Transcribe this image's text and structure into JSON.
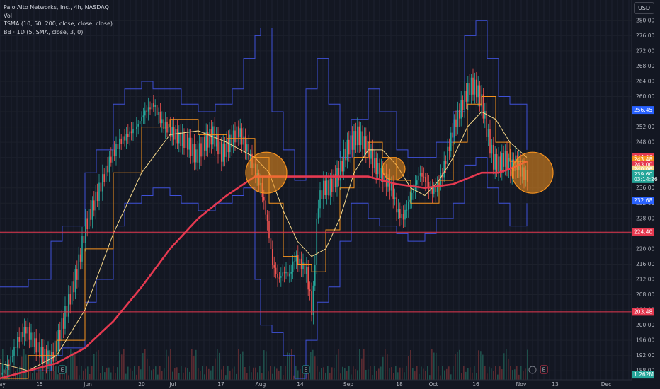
{
  "legend": {
    "title": "Palo Alto Networks, Inc., 4h, NASDAQ",
    "vol": "Vol",
    "tsma": "TSMA (10, 50, 200, close, close, close)",
    "bb": "BB · 1D (5, SMA, close, 3, 0)"
  },
  "currency": "USD",
  "colors": {
    "background": "#131722",
    "up": "#26a69a",
    "down": "#ef5350",
    "bb_band": "#3f51d8",
    "ma_short": "#f7931e",
    "ma_mid": "#f5d78a",
    "ma_long": "#e53950",
    "circle": "#f7931e",
    "hline": "#e53950"
  },
  "chart_data": {
    "type": "line",
    "ylim": [
      186,
      282
    ],
    "y_ticks": [
      188,
      192,
      196,
      200,
      204,
      208,
      212,
      216,
      220,
      224,
      228,
      232,
      236,
      240,
      244,
      248,
      252,
      256,
      260,
      264,
      268,
      272,
      276,
      280
    ],
    "y_tick_labels": [
      "188.00",
      "192.00",
      "196.00",
      "200.00",
      "204.00",
      "208.00",
      "212.00",
      "216.00",
      "220.00",
      "224.00",
      "228.00",
      "232.00",
      "236.00",
      "240.00",
      "244.00",
      "248.00",
      "252.00",
      "256.00",
      "260.00",
      "264.00",
      "268.00",
      "272.00",
      "276.00",
      "280.00"
    ],
    "x_labels": [
      "May",
      "15",
      "Jun",
      "20",
      "Jul",
      "17",
      "Aug",
      "14",
      "Sep",
      "18",
      "Oct",
      "16",
      "Nov",
      "13",
      "Dec"
    ],
    "x_label_days": [
      0,
      14,
      31,
      50,
      61,
      78,
      92,
      106,
      123,
      141,
      153,
      168,
      184,
      196,
      214
    ],
    "x_range_days": [
      0,
      223
    ],
    "series": [
      {
        "role": "price",
        "x": [
          0,
          3,
          6,
          9,
          12,
          15,
          18,
          21,
          24,
          27,
          30,
          33,
          36,
          39,
          42,
          45,
          48,
          51,
          54,
          57,
          60,
          63,
          66,
          69,
          72,
          75,
          78,
          81,
          84,
          87,
          90,
          92,
          94,
          96,
          98,
          100,
          102,
          104,
          106,
          108,
          110,
          112,
          114,
          116,
          118,
          120,
          122,
          124,
          126,
          128,
          130,
          132,
          134,
          136,
          138,
          140,
          142,
          144,
          146,
          148,
          150,
          152,
          154,
          156,
          158,
          160,
          162,
          164,
          166,
          168,
          170,
          172,
          174,
          176,
          178,
          180,
          182,
          184,
          186
        ],
        "values": [
          187,
          190,
          196,
          199,
          195,
          192,
          191,
          198,
          206,
          214,
          226,
          232,
          238,
          244,
          248,
          250,
          252,
          256,
          258,
          253,
          251,
          249,
          248,
          244,
          248,
          250,
          245,
          248,
          251,
          246,
          240,
          236,
          228,
          216,
          212,
          214,
          213,
          218,
          216,
          214,
          203,
          232,
          236,
          236,
          238,
          241,
          246,
          248,
          250,
          248,
          246,
          242,
          240,
          238,
          236,
          230,
          228,
          232,
          236,
          240,
          238,
          235,
          236,
          240,
          246,
          252,
          256,
          260,
          263,
          262,
          258,
          250,
          243,
          242,
          244,
          241,
          243,
          240,
          239
        ]
      },
      {
        "role": "ma_short",
        "x": [
          0,
          10,
          20,
          30,
          40,
          50,
          60,
          70,
          80,
          90,
          95,
          100,
          105,
          110,
          115,
          120,
          125,
          130,
          135,
          140,
          145,
          150,
          155,
          160,
          165,
          170,
          175,
          180,
          186
        ],
        "values": [
          186,
          192,
          196,
          220,
          240,
          252,
          254,
          250,
          249,
          244,
          232,
          218,
          216,
          214,
          225,
          236,
          244,
          248,
          244,
          238,
          232,
          232,
          238,
          248,
          258,
          260,
          248,
          243,
          243
        ]
      },
      {
        "role": "ma_mid",
        "x": [
          0,
          10,
          20,
          30,
          40,
          50,
          60,
          70,
          80,
          90,
          95,
          100,
          105,
          110,
          115,
          120,
          125,
          130,
          135,
          140,
          145,
          150,
          155,
          160,
          165,
          170,
          175,
          180,
          186
        ],
        "values": [
          190,
          188,
          192,
          204,
          224,
          240,
          250,
          251,
          248,
          244,
          240,
          230,
          222,
          218,
          220,
          228,
          240,
          246,
          246,
          242,
          236,
          234,
          238,
          244,
          252,
          256,
          254,
          248,
          244
        ]
      },
      {
        "role": "ma_long",
        "x": [
          0,
          10,
          20,
          30,
          40,
          50,
          60,
          70,
          80,
          90,
          95,
          100,
          110,
          120,
          130,
          140,
          150,
          160,
          170,
          176,
          180,
          186
        ],
        "values": [
          186,
          188,
          190,
          194,
          201,
          210,
          220,
          228,
          234,
          239,
          239,
          239,
          239,
          239,
          239,
          237,
          236,
          237,
          240,
          240,
          241,
          243
        ]
      },
      {
        "role": "bb_upper",
        "x": [
          0,
          8,
          10,
          18,
          22,
          30,
          34,
          40,
          44,
          50,
          54,
          60,
          64,
          70,
          76,
          82,
          86,
          90,
          92,
          96,
          100,
          104,
          108,
          112,
          116,
          120,
          124,
          130,
          134,
          140,
          144,
          150,
          154,
          160,
          164,
          168,
          172,
          176,
          180,
          186
        ],
        "values": [
          210,
          210,
          212,
          222,
          226,
          240,
          246,
          258,
          262,
          264,
          262,
          262,
          258,
          256,
          258,
          262,
          270,
          276,
          278,
          256,
          246,
          238,
          262,
          270,
          258,
          244,
          254,
          262,
          256,
          246,
          244,
          244,
          248,
          256,
          276,
          280,
          270,
          260,
          258,
          246
        ]
      },
      {
        "role": "bb_lower",
        "x": [
          0,
          8,
          10,
          18,
          22,
          30,
          34,
          40,
          44,
          50,
          54,
          60,
          64,
          70,
          76,
          82,
          86,
          90,
          92,
          96,
          100,
          104,
          108,
          112,
          116,
          120,
          124,
          130,
          134,
          140,
          144,
          150,
          154,
          160,
          164,
          168,
          172,
          176,
          180,
          186
        ],
        "values": [
          186,
          186,
          188,
          192,
          194,
          206,
          212,
          226,
          232,
          234,
          236,
          234,
          232,
          230,
          232,
          234,
          236,
          212,
          200,
          198,
          192,
          186,
          196,
          206,
          210,
          222,
          232,
          228,
          226,
          224,
          222,
          224,
          228,
          232,
          242,
          244,
          236,
          232,
          226,
          232
        ]
      }
    ],
    "horizontal_lines": [
      224.4,
      203.48
    ],
    "price_tags": [
      {
        "label": "256.45",
        "value": 256.45,
        "color": "#2962ff"
      },
      {
        "label": "244.06",
        "value": 244.06,
        "color": "#e53950"
      },
      {
        "label": "243.48",
        "value": 243.48,
        "color": "#f7931e"
      },
      {
        "label": "243.00",
        "value": 242.1,
        "color": "#e53950"
      },
      {
        "label": "240.06",
        "value": 240.9,
        "color": "#f5d78a"
      },
      {
        "label": "239.60",
        "value": 239.6,
        "color": "#26a69a"
      },
      {
        "label": "03:14:26",
        "value": 238.3,
        "color": "#26a69a"
      },
      {
        "label": "232.68",
        "value": 232.68,
        "color": "#2962ff"
      },
      {
        "label": "224.40",
        "value": 224.4,
        "color": "#e53950"
      },
      {
        "label": "203.48",
        "value": 203.48,
        "color": "#e53950"
      },
      {
        "label": "1.262M",
        "value": 187,
        "color": "#26a69a"
      }
    ],
    "highlight_circles": [
      {
        "day": 94,
        "value": 240
      },
      {
        "day": 139,
        "value": 241
      },
      {
        "day": 188,
        "value": 240
      }
    ],
    "event_markers": [
      {
        "day": 22,
        "label": "E"
      },
      {
        "day": 108,
        "label": "E"
      },
      {
        "day": 192,
        "label": "E"
      }
    ]
  }
}
